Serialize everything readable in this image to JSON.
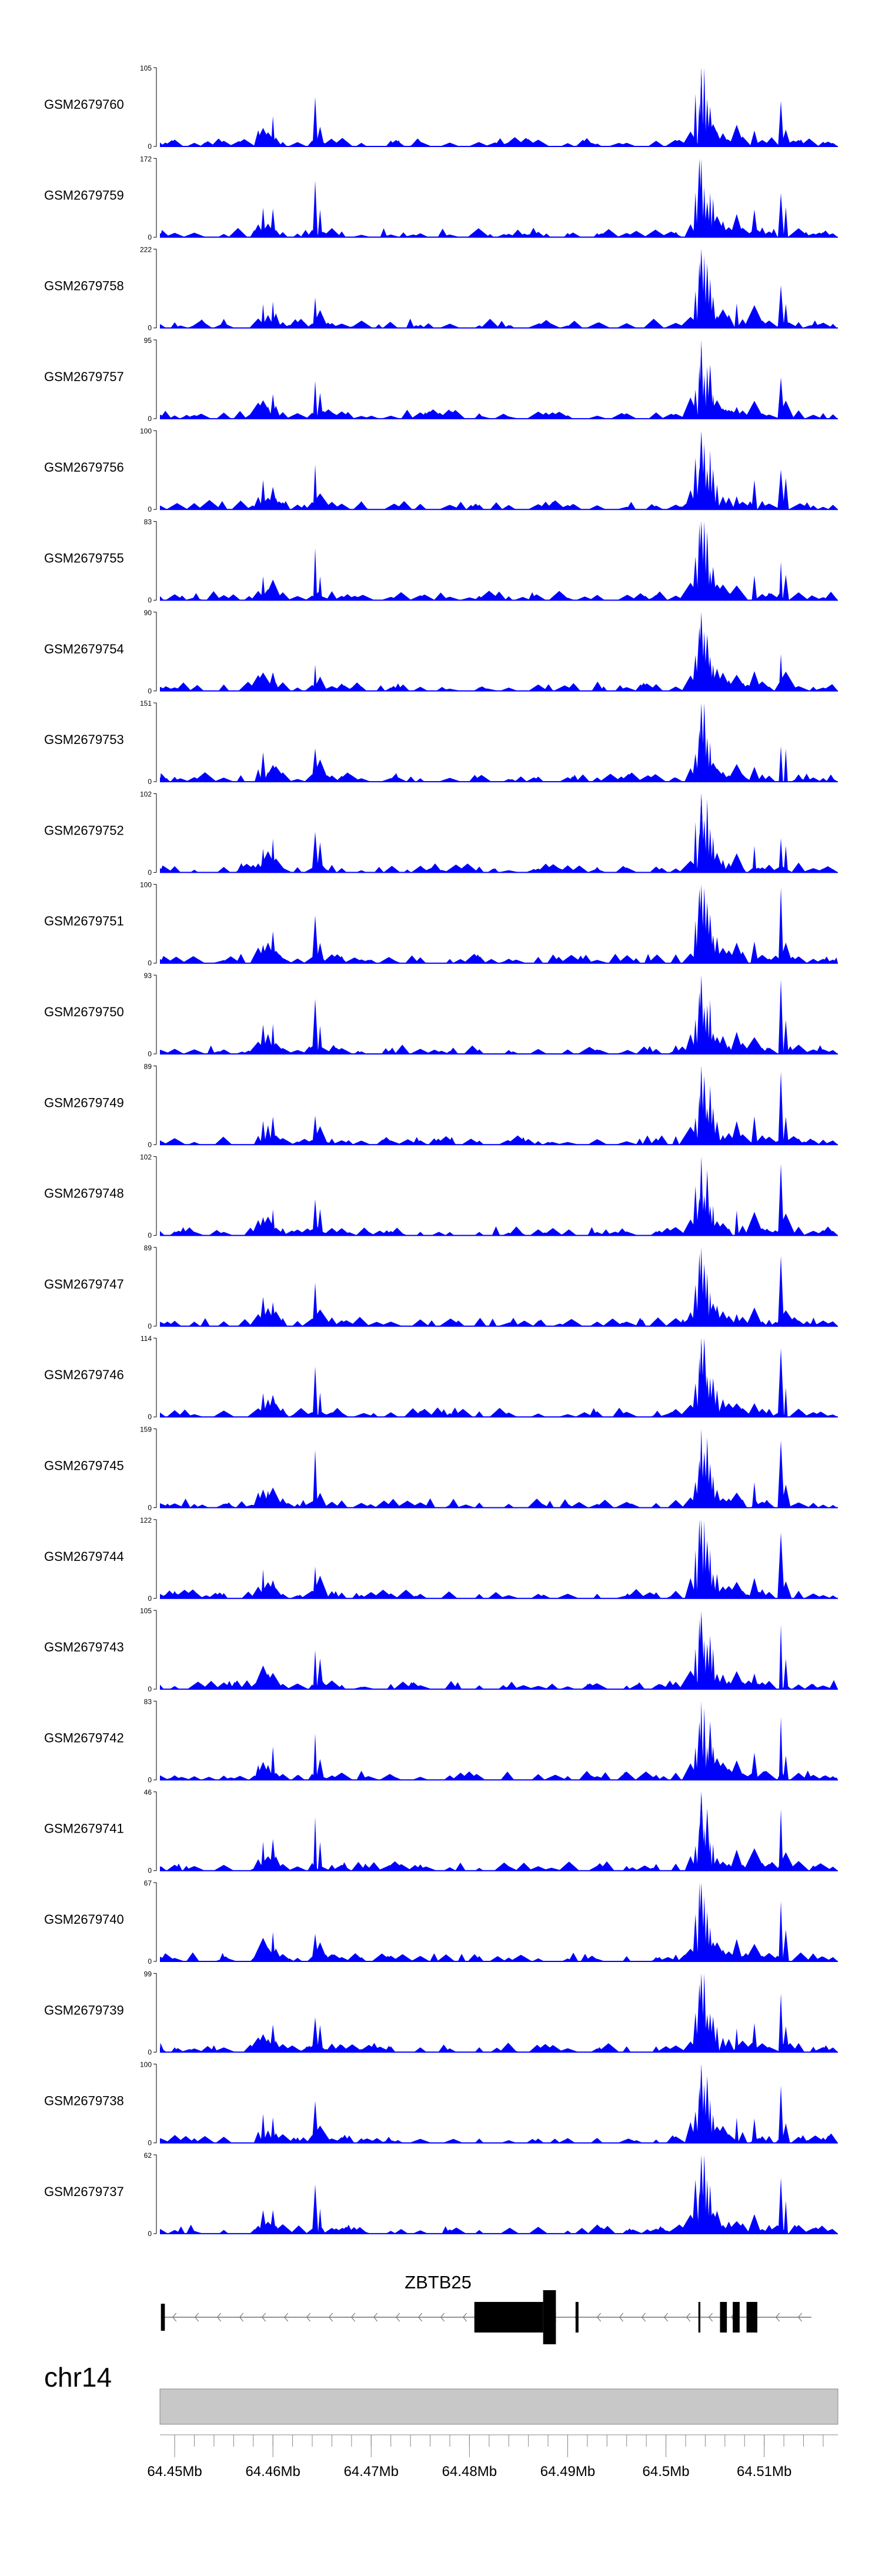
{
  "chart_data": {
    "type": "area",
    "series_color": "#0000ff",
    "x_range_mb": [
      64.4485,
      64.5175
    ],
    "tracks": [
      {
        "name": "GSM2679760",
        "ymax": 105,
        "ymin": 0
      },
      {
        "name": "GSM2679759",
        "ymax": 172,
        "ymin": 0
      },
      {
        "name": "GSM2679758",
        "ymax": 222,
        "ymin": 0
      },
      {
        "name": "GSM2679757",
        "ymax": 95,
        "ymin": 0
      },
      {
        "name": "GSM2679756",
        "ymax": 100,
        "ymin": 0
      },
      {
        "name": "GSM2679755",
        "ymax": 83,
        "ymin": 0
      },
      {
        "name": "GSM2679754",
        "ymax": 90,
        "ymin": 0
      },
      {
        "name": "GSM2679753",
        "ymax": 151,
        "ymin": 0
      },
      {
        "name": "GSM2679752",
        "ymax": 102,
        "ymin": 0
      },
      {
        "name": "GSM2679751",
        "ymax": 100,
        "ymin": 0
      },
      {
        "name": "GSM2679750",
        "ymax": 93,
        "ymin": 0
      },
      {
        "name": "GSM2679749",
        "ymax": 89,
        "ymin": 0
      },
      {
        "name": "GSM2679748",
        "ymax": 102,
        "ymin": 0
      },
      {
        "name": "GSM2679747",
        "ymax": 89,
        "ymin": 0
      },
      {
        "name": "GSM2679746",
        "ymax": 114,
        "ymin": 0
      },
      {
        "name": "GSM2679745",
        "ymax": 159,
        "ymin": 0
      },
      {
        "name": "GSM2679744",
        "ymax": 122,
        "ymin": 0
      },
      {
        "name": "GSM2679743",
        "ymax": 105,
        "ymin": 0
      },
      {
        "name": "GSM2679742",
        "ymax": 83,
        "ymin": 0
      },
      {
        "name": "GSM2679741",
        "ymax": 46,
        "ymin": 0
      },
      {
        "name": "GSM2679740",
        "ymax": 67,
        "ymin": 0
      },
      {
        "name": "GSM2679739",
        "ymax": 99,
        "ymin": 0
      },
      {
        "name": "GSM2679738",
        "ymax": 100,
        "ymin": 0
      },
      {
        "name": "GSM2679737",
        "ymax": 62,
        "ymin": 0
      }
    ],
    "gene": {
      "name": "ZBTB25",
      "strand": "-",
      "start_mb": 64.4486,
      "end_mb": 64.5148,
      "exons_mb": [
        [
          64.4486,
          64.449
        ],
        [
          64.4805,
          64.4875
        ],
        [
          64.4875,
          64.4888
        ],
        [
          64.4908,
          64.4911
        ],
        [
          64.5033,
          64.5035
        ],
        [
          64.5055,
          64.5062
        ],
        [
          64.5068,
          64.5075
        ],
        [
          64.5082,
          64.5093
        ]
      ]
    },
    "chromosome": "chr14",
    "x_ticks": [
      64.45,
      64.46,
      64.47,
      64.48,
      64.49,
      64.5,
      64.51
    ],
    "x_tick_labels": [
      "64.45Mb",
      "64.46Mb",
      "64.47Mb",
      "64.48Mb",
      "64.49Mb",
      "64.5Mb",
      "64.51Mb"
    ],
    "minor_tick_step_mb": 0.002,
    "peaks": [
      [
        64.4485,
        0.05
      ],
      [
        64.45,
        0.07
      ],
      [
        64.452,
        0.05
      ],
      [
        64.455,
        0.07
      ],
      [
        64.4585,
        0.18
      ],
      [
        64.459,
        0.3
      ],
      [
        64.4595,
        0.22
      ],
      [
        64.46,
        0.35
      ],
      [
        64.4603,
        0.16
      ],
      [
        64.461,
        0.1
      ],
      [
        64.4625,
        0.06
      ],
      [
        64.464,
        0.08
      ],
      [
        64.465,
        0.07
      ],
      [
        64.4643,
        0.6
      ],
      [
        64.4648,
        0.32
      ],
      [
        64.466,
        0.1
      ],
      [
        64.467,
        0.08
      ],
      [
        64.469,
        0.05
      ],
      [
        64.472,
        0.06
      ],
      [
        64.475,
        0.07
      ],
      [
        64.478,
        0.05
      ],
      [
        64.481,
        0.06
      ],
      [
        64.484,
        0.05
      ],
      [
        64.487,
        0.07
      ],
      [
        64.49,
        0.05
      ],
      [
        64.493,
        0.06
      ],
      [
        64.496,
        0.06
      ],
      [
        64.499,
        0.07
      ],
      [
        64.501,
        0.09
      ],
      [
        64.5025,
        0.22
      ],
      [
        64.503,
        0.55
      ],
      [
        64.5034,
        0.85
      ],
      [
        64.5036,
        1.0
      ],
      [
        64.5039,
        0.92
      ],
      [
        64.5042,
        0.75
      ],
      [
        64.5045,
        0.62
      ],
      [
        64.5048,
        0.42
      ],
      [
        64.5052,
        0.28
      ],
      [
        64.5058,
        0.2
      ],
      [
        64.5064,
        0.14
      ],
      [
        64.5072,
        0.26
      ],
      [
        64.5078,
        0.12
      ],
      [
        64.509,
        0.3
      ],
      [
        64.5098,
        0.1
      ],
      [
        64.5105,
        0.09
      ],
      [
        64.5117,
        0.78
      ],
      [
        64.5122,
        0.35
      ],
      [
        64.5135,
        0.1
      ],
      [
        64.515,
        0.07
      ],
      [
        64.516,
        0.06
      ],
      [
        64.517,
        0.05
      ]
    ]
  }
}
